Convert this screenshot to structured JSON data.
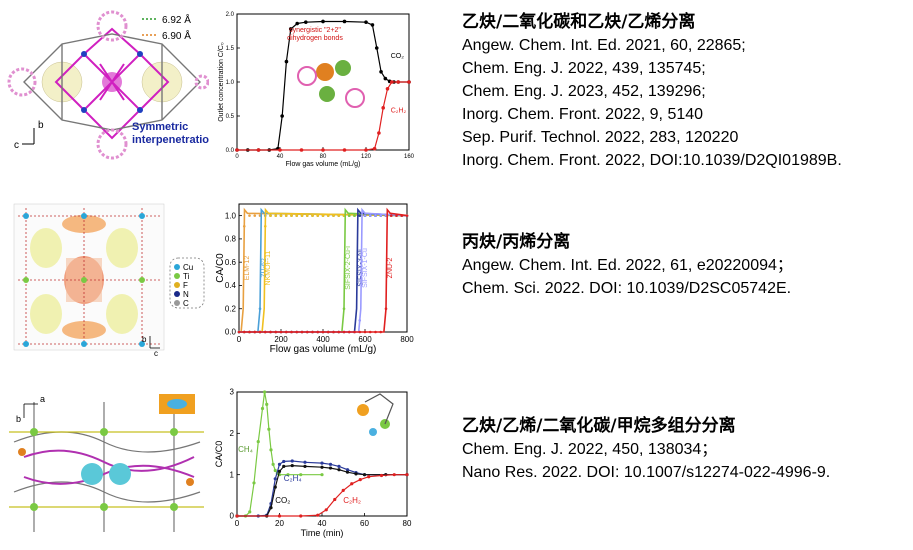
{
  "panel1": {
    "structure": {
      "legend": [
        "6.92 Å",
        "6.90 Å"
      ],
      "axis_b": "b",
      "axis_c": "c",
      "caption_line1": "Symmetric",
      "caption_line2": "interpenetration"
    },
    "chart_data": {
      "type": "line",
      "xlabel": "Flow gas volume (mL/g)",
      "ylabel": "Outlet concentration C/C₀",
      "xlim": [
        0,
        160
      ],
      "ylim": [
        0,
        2.0
      ],
      "xticks": [
        "0",
        "40",
        "80",
        "120",
        "160"
      ],
      "yticks": [
        "0.0",
        "0.5",
        "1.0",
        "1.5",
        "2.0"
      ],
      "annotation_line1": "synergistic \"2+2\"",
      "annotation_line2": "dihydrogen bonds",
      "series": [
        {
          "name": "CO₂",
          "color": "#000000",
          "x": [
            0,
            10,
            20,
            30,
            38,
            42,
            46,
            50,
            56,
            64,
            80,
            100,
            120,
            126,
            130,
            134,
            138,
            142,
            146,
            150,
            160
          ],
          "y": [
            0,
            0,
            0,
            0,
            0.02,
            0.5,
            1.3,
            1.78,
            1.86,
            1.88,
            1.89,
            1.89,
            1.88,
            1.84,
            1.5,
            1.15,
            1.05,
            1.01,
            1.0,
            1.0,
            1.0
          ]
        },
        {
          "name": "C₂H₂",
          "color": "#e02020",
          "x": [
            0,
            20,
            40,
            60,
            80,
            100,
            120,
            128,
            132,
            136,
            140,
            144,
            150,
            160
          ],
          "y": [
            0,
            0,
            0,
            0,
            0,
            0,
            0,
            0.02,
            0.25,
            0.62,
            0.9,
            1.0,
            1.0,
            1.0
          ]
        }
      ]
    },
    "heading": "乙炔/二氧化碳和乙炔/乙烯分离",
    "refs": [
      "Angew. Chem. Int. Ed. 2021, 60, 22865;",
      "Chem. Eng. J. 2022, 439, 135745;",
      "Chem. Eng. J. 2023, 452, 139296;",
      "Inorg. Chem. Front. 2022, 9, 5140",
      "Sep. Purif. Technol. 2022, 283, 120220",
      "Inorg. Chem. Front. 2022, DOI:10.1039/D2QI01989B."
    ]
  },
  "panel2": {
    "structure": {
      "legend": [
        "Cu",
        "Ti",
        "F",
        "N",
        "C"
      ],
      "legend_colors": [
        "#2aa6d8",
        "#7ac943",
        "#e0b020",
        "#1a2a8a",
        "#999999"
      ],
      "axis_b": "b",
      "axis_c": "c"
    },
    "chart_data": {
      "type": "line",
      "xlabel": "Flow gas volume (mL/g)",
      "ylabel": "CA/C0",
      "xlim": [
        0,
        800
      ],
      "ylim": [
        0,
        1.1
      ],
      "xticks": [
        "0",
        "200",
        "400",
        "600",
        "800"
      ],
      "yticks": [
        "0.0",
        "0.2",
        "0.4",
        "0.6",
        "0.8",
        "1.0"
      ],
      "series": [
        {
          "name": "ELM-12",
          "color": "#e8a040",
          "breakthrough": 20
        },
        {
          "name": "ZU-62",
          "color": "#4aa0d8",
          "breakthrough": 100
        },
        {
          "name": "NKMOF-11",
          "color": "#f0c020",
          "breakthrough": 120
        },
        {
          "name": "SIFSIX-2-Cu-i",
          "color": "#7ac943",
          "breakthrough": 500
        },
        {
          "name": "SIFSIX-3-Ni",
          "color": "#2a3a9a",
          "breakthrough": 560
        },
        {
          "name": "SIFSIX-1-Cu",
          "color": "#9a9aff",
          "breakthrough": 580
        },
        {
          "name": "ZNU-2",
          "color": "#e02020",
          "breakthrough": 700
        }
      ]
    },
    "heading": "丙炔/丙烯分离",
    "refs": [
      "Angew. Chem. Int. Ed. 2022, 61, e20220094；",
      "Chem. Sci. 2022. DOI: 10.1039/D2SC05742E."
    ]
  },
  "panel3": {
    "structure": {
      "axis_a": "a",
      "axis_b": "b"
    },
    "chart_data": {
      "type": "line",
      "xlabel": "Time (min)",
      "ylabel": "CA/C0",
      "xlim": [
        0,
        80
      ],
      "ylim": [
        0,
        3
      ],
      "xticks": [
        "0",
        "20",
        "40",
        "60",
        "80"
      ],
      "yticks": [
        "0",
        "1",
        "2",
        "3"
      ],
      "series": [
        {
          "name": "CH₄",
          "color": "#7ac943",
          "x": [
            0,
            4,
            6,
            8,
            10,
            12,
            13,
            14,
            15,
            16,
            17,
            18,
            19,
            20,
            24,
            30,
            40
          ],
          "y": [
            0,
            0,
            0.1,
            0.8,
            1.8,
            2.6,
            3.0,
            2.7,
            2.1,
            1.6,
            1.25,
            1.1,
            1.03,
            1.0,
            1.0,
            1.0,
            1.0
          ]
        },
        {
          "name": "C₂H₄",
          "color": "#2a3a9a",
          "x": [
            0,
            10,
            14,
            16,
            18,
            20,
            22,
            26,
            32,
            40,
            44,
            48,
            52,
            56,
            60,
            70,
            80
          ],
          "y": [
            0,
            0,
            0.02,
            0.3,
            0.9,
            1.25,
            1.32,
            1.33,
            1.3,
            1.28,
            1.25,
            1.2,
            1.12,
            1.05,
            1.0,
            1.0,
            1.0
          ]
        },
        {
          "name": "CO₂",
          "color": "#111111",
          "x": [
            0,
            14,
            16,
            18,
            20,
            22,
            26,
            32,
            40,
            44,
            48,
            52,
            56,
            60,
            70,
            80
          ],
          "y": [
            0,
            0,
            0.2,
            0.7,
            1.08,
            1.2,
            1.22,
            1.2,
            1.18,
            1.16,
            1.12,
            1.06,
            1.02,
            1.0,
            1.0,
            1.0
          ]
        },
        {
          "name": "C₂H₂",
          "color": "#e02020",
          "x": [
            0,
            20,
            30,
            38,
            42,
            46,
            50,
            54,
            58,
            62,
            68,
            74,
            80
          ],
          "y": [
            0,
            0,
            0,
            0.02,
            0.15,
            0.4,
            0.62,
            0.78,
            0.88,
            0.95,
            0.98,
            1.0,
            1.0
          ]
        }
      ]
    },
    "heading": "乙炔/乙烯/二氧化碳/甲烷多组分分离",
    "refs": [
      "Chem. Eng. J. 2022, 450, 138034；",
      "Nano Res. 2022. DOI: 10.1007/s12274-022-4996-9."
    ]
  }
}
